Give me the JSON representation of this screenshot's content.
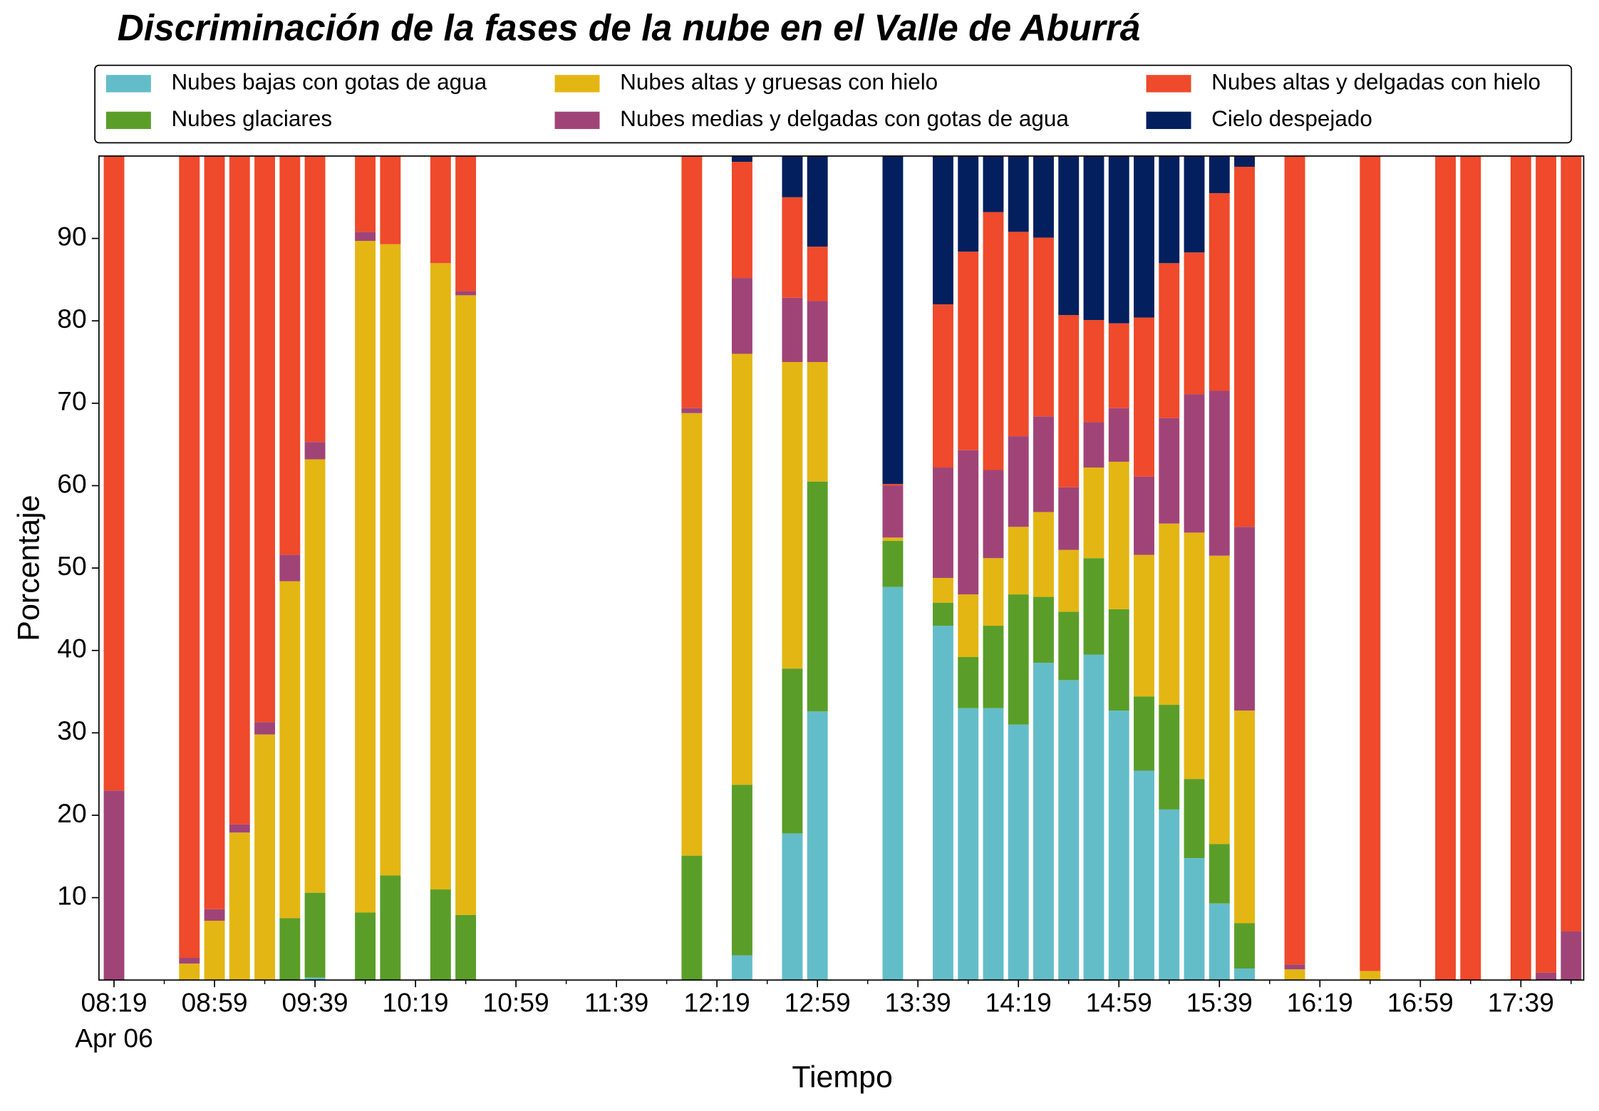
{
  "chart_data": {
    "type": "stacked_bar",
    "title": "Discriminación de la fases de la nube en el Valle de Aburrá",
    "xlabel": "Tiempo",
    "ylabel": "Porcentaje",
    "x_date_label": "Apr 06",
    "x": [
      "08:19",
      "08:49",
      "08:59",
      "09:09",
      "09:19",
      "09:29",
      "09:39",
      "09:59",
      "10:09",
      "10:29",
      "10:39",
      "12:09",
      "12:29",
      "12:49",
      "12:59",
      "13:29",
      "13:49",
      "13:59",
      "14:09",
      "14:19",
      "14:29",
      "14:39",
      "14:49",
      "14:59",
      "15:09",
      "15:19",
      "15:29",
      "15:39",
      "15:49",
      "16:09",
      "16:39",
      "17:09",
      "17:19",
      "17:39",
      "17:49",
      "17:59"
    ],
    "xlim": [
      "08:13",
      "18:04"
    ],
    "xticks": [
      "08:19",
      "08:59",
      "09:39",
      "10:19",
      "10:59",
      "11:39",
      "12:19",
      "12:59",
      "13:39",
      "14:19",
      "14:59",
      "15:39",
      "16:19",
      "16:59",
      "17:39"
    ],
    "xminorticks": [
      "08:39",
      "09:19",
      "09:59",
      "10:39",
      "11:19",
      "11:59",
      "12:39",
      "13:19",
      "13:59",
      "14:39",
      "15:19",
      "15:59",
      "16:39",
      "17:19",
      "17:59"
    ],
    "ylim": [
      0,
      100
    ],
    "yticks": [
      10,
      20,
      30,
      40,
      50,
      60,
      70,
      80,
      90
    ],
    "legend_position": "top",
    "series": [
      {
        "name": "Nubes bajas con gotas de agua",
        "color": "#63bdc9",
        "values": [
          0,
          0,
          0,
          0,
          0,
          0,
          0.3,
          0,
          0,
          0,
          0,
          0,
          3.0,
          17.8,
          32.6,
          47.7,
          43.0,
          33.0,
          33.0,
          31.0,
          38.5,
          36.4,
          39.5,
          32.7,
          25.4,
          20.7,
          14.8,
          9.3,
          1.4,
          0,
          0,
          0,
          0,
          0,
          0,
          0
        ]
      },
      {
        "name": "Nubes glaciares",
        "color": "#5a9e29",
        "values": [
          0,
          0,
          0,
          0,
          0,
          7.5,
          10.3,
          8.2,
          12.7,
          11.0,
          7.9,
          15.1,
          20.7,
          20.0,
          27.9,
          5.6,
          2.8,
          6.2,
          10.0,
          15.8,
          8.0,
          8.3,
          11.7,
          12.3,
          9.0,
          12.7,
          9.6,
          7.2,
          5.5,
          0,
          0,
          0,
          0,
          0,
          0,
          0
        ]
      },
      {
        "name": "Nubes altas y gruesas con hielo",
        "color": "#e3b614",
        "values": [
          0,
          2.0,
          7.2,
          17.9,
          29.8,
          40.9,
          52.6,
          81.5,
          76.6,
          76.0,
          75.2,
          53.7,
          52.3,
          37.2,
          14.5,
          0.4,
          3.0,
          7.6,
          8.2,
          8.2,
          10.3,
          7.5,
          11.0,
          17.9,
          17.2,
          22.0,
          29.9,
          35.0,
          25.8,
          1.3,
          1.1,
          0,
          0,
          0,
          0,
          0
        ]
      },
      {
        "name": "Nubes medias y delgadas con gotas de agua",
        "color": "#a04478",
        "values": [
          23.0,
          0.7,
          1.4,
          1.0,
          1.5,
          3.2,
          2.1,
          1.1,
          0,
          0,
          0.5,
          0.6,
          9.2,
          7.8,
          7.4,
          6.3,
          13.4,
          17.5,
          10.7,
          11.0,
          11.6,
          7.6,
          5.5,
          6.5,
          9.5,
          12.8,
          16.8,
          20.0,
          22.3,
          0.6,
          0,
          0,
          0,
          0,
          0.9,
          5.9
        ]
      },
      {
        "name": "Nubes altas y delgadas con hielo",
        "color": "#ee4a2b",
        "values": [
          77.0,
          97.3,
          91.4,
          81.1,
          68.7,
          48.4,
          34.7,
          9.2,
          10.7,
          13.0,
          16.4,
          30.6,
          14.1,
          12.2,
          6.6,
          0.2,
          19.8,
          24.1,
          31.3,
          24.8,
          21.7,
          20.9,
          12.4,
          10.3,
          19.3,
          18.8,
          17.2,
          24.0,
          43.7,
          98.1,
          98.9,
          100,
          100,
          100,
          99.1,
          94.1
        ]
      },
      {
        "name": "Cielo despejado",
        "color": "#031f5e",
        "values": [
          0,
          0,
          0,
          0,
          0,
          0,
          0,
          0,
          0,
          0,
          0,
          0,
          0.7,
          5.0,
          11.0,
          39.8,
          18.0,
          11.6,
          6.8,
          9.2,
          9.9,
          19.3,
          19.9,
          20.3,
          19.6,
          13.0,
          11.7,
          4.5,
          1.3,
          0,
          0,
          0,
          0,
          0,
          0,
          0
        ]
      }
    ]
  }
}
